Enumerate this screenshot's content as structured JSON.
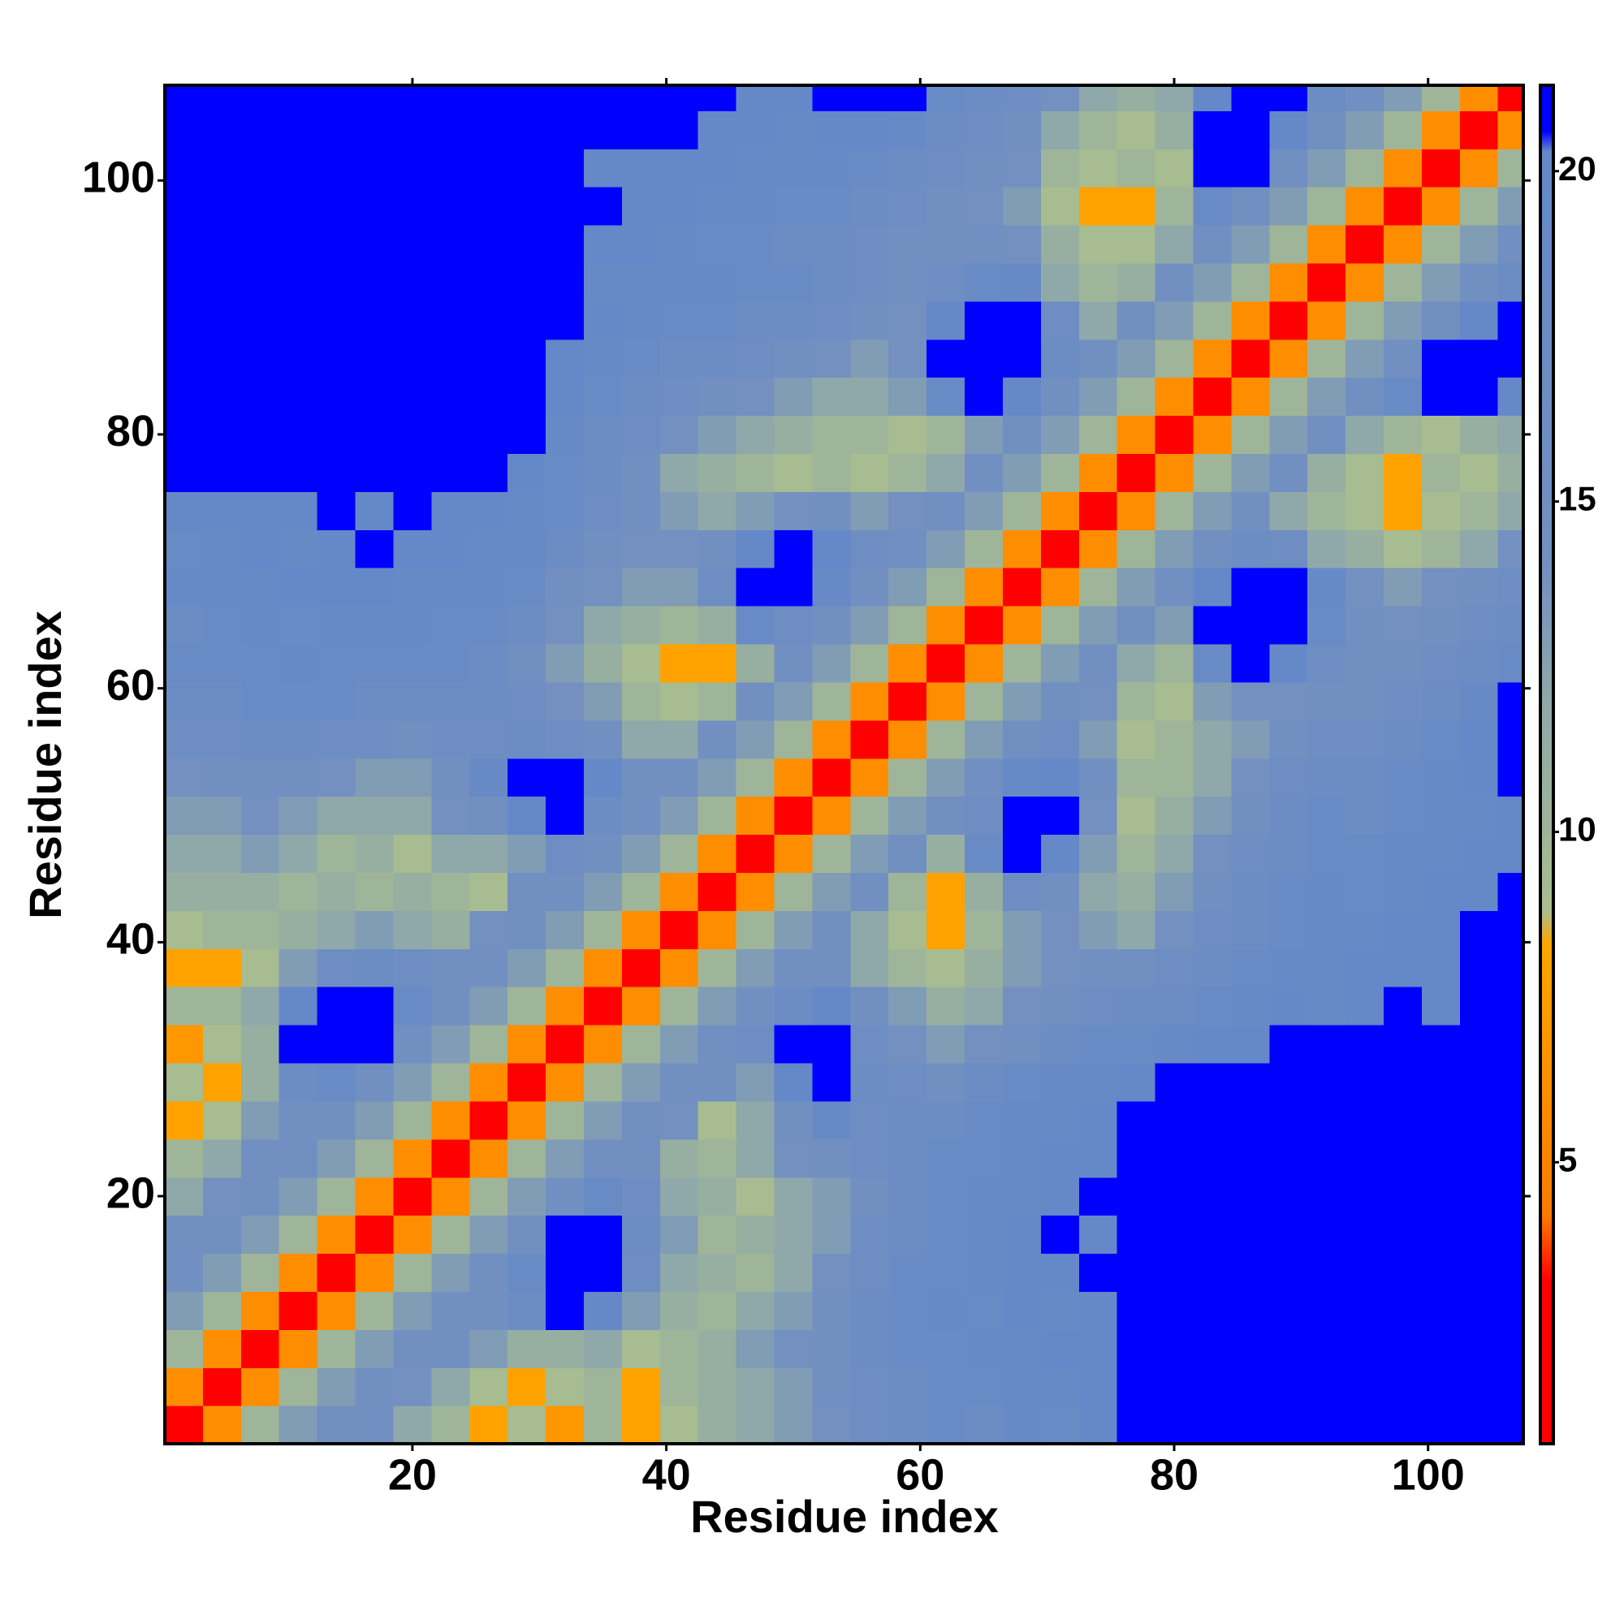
{
  "chart_data": {
    "type": "heatmap",
    "x_label": "Residue index",
    "y_label": "Residue index",
    "bins": [
      0.5,
      3.5,
      6.5,
      9.5,
      12.5,
      15.5,
      18.5,
      21.5,
      24.5,
      27.5,
      30.5,
      33.5,
      36.5,
      39.5,
      42.5,
      45.5,
      48.5,
      51.5,
      54.5,
      57.5,
      60.5,
      63.5,
      66.5,
      69.5,
      72.5,
      75.5,
      78.5,
      81.5,
      84.5,
      87.5,
      90.5,
      93.5,
      96.5,
      99.5,
      102.5,
      105.5,
      107.5
    ],
    "values": [
      [
        2,
        6,
        10,
        13,
        15,
        15,
        12,
        10,
        8,
        9,
        7,
        10,
        8,
        9,
        11,
        12,
        13,
        14,
        16,
        17,
        18,
        17,
        19,
        18,
        20,
        21,
        21,
        21,
        21,
        21,
        21,
        21,
        21,
        21,
        21,
        21
      ],
      [
        6,
        2,
        6,
        10,
        13,
        15,
        14,
        12,
        9,
        8,
        9,
        10,
        8,
        10,
        11,
        12,
        13,
        15,
        16,
        17,
        18,
        18,
        19,
        19,
        20,
        21,
        21,
        21,
        21,
        21,
        21,
        21,
        21,
        21,
        21,
        21
      ],
      [
        10,
        6,
        2,
        6,
        10,
        13,
        15,
        15,
        13,
        11,
        11,
        12,
        9,
        10,
        11,
        13,
        14,
        15,
        17,
        18,
        18,
        19,
        19,
        20,
        20,
        21,
        21,
        21,
        21,
        21,
        21,
        21,
        21,
        21,
        21,
        21
      ],
      [
        13,
        10,
        6,
        2,
        6,
        10,
        13,
        15,
        15,
        17,
        21,
        20,
        13,
        11,
        10,
        12,
        13,
        15,
        17,
        18,
        19,
        18,
        20,
        19,
        20,
        21,
        21,
        21,
        21,
        21,
        21,
        21,
        21,
        21,
        21,
        21
      ],
      [
        15,
        13,
        10,
        6,
        2,
        6,
        10,
        13,
        15,
        18,
        21,
        21,
        16,
        12,
        11,
        10,
        12,
        14,
        16,
        18,
        18,
        19,
        20,
        20,
        21,
        21,
        21,
        21,
        21,
        21,
        21,
        21,
        21,
        21,
        21,
        21
      ],
      [
        15,
        15,
        13,
        10,
        6,
        2,
        6,
        10,
        13,
        15,
        21,
        21,
        17,
        13,
        10,
        11,
        12,
        13,
        16,
        17,
        18,
        19,
        20,
        21,
        20,
        21,
        21,
        21,
        21,
        21,
        21,
        21,
        21,
        21,
        21,
        21
      ],
      [
        12,
        14,
        15,
        13,
        10,
        6,
        2,
        6,
        10,
        13,
        15,
        18,
        16,
        12,
        11,
        9,
        12,
        13,
        15,
        17,
        18,
        19,
        19,
        20,
        21,
        21,
        21,
        21,
        21,
        21,
        21,
        21,
        21,
        21,
        21,
        21
      ],
      [
        10,
        12,
        15,
        15,
        13,
        10,
        6,
        2,
        6,
        10,
        13,
        15,
        15,
        11,
        10,
        12,
        14,
        15,
        16,
        17,
        18,
        18,
        19,
        20,
        20,
        21,
        21,
        21,
        21,
        21,
        21,
        21,
        21,
        21,
        21,
        21
      ],
      [
        8,
        9,
        13,
        15,
        15,
        13,
        10,
        6,
        2,
        6,
        10,
        13,
        15,
        14,
        9,
        12,
        15,
        19,
        16,
        17,
        17,
        18,
        19,
        19,
        20,
        21,
        21,
        21,
        21,
        21,
        21,
        21,
        21,
        21,
        21,
        21
      ],
      [
        9,
        8,
        11,
        17,
        18,
        15,
        13,
        10,
        6,
        2,
        6,
        10,
        13,
        15,
        15,
        13,
        20,
        21,
        17,
        16,
        15,
        17,
        18,
        19,
        19,
        20,
        21,
        21,
        21,
        21,
        21,
        21,
        21,
        21,
        21,
        21
      ],
      [
        7,
        9,
        11,
        21,
        21,
        21,
        15,
        13,
        10,
        6,
        2,
        6,
        10,
        13,
        15,
        16,
        21,
        21,
        16,
        14,
        13,
        14,
        15,
        17,
        18,
        18,
        19,
        20,
        20,
        21,
        21,
        21,
        21,
        21,
        21,
        21
      ],
      [
        10,
        10,
        12,
        20,
        21,
        21,
        18,
        15,
        13,
        10,
        6,
        2,
        6,
        10,
        13,
        15,
        17,
        20,
        15,
        13,
        11,
        12,
        14,
        15,
        16,
        17,
        17,
        18,
        19,
        20,
        19,
        20,
        21,
        20,
        21,
        21
      ],
      [
        8,
        8,
        9,
        13,
        16,
        17,
        16,
        15,
        15,
        13,
        10,
        6,
        2,
        6,
        10,
        13,
        15,
        15,
        12,
        10,
        9,
        11,
        13,
        14,
        15,
        15,
        16,
        17,
        18,
        19,
        19,
        20,
        20,
        20,
        21,
        21
      ],
      [
        9,
        10,
        10,
        11,
        12,
        13,
        12,
        11,
        14,
        15,
        13,
        10,
        6,
        2,
        6,
        10,
        13,
        15,
        12,
        9,
        8,
        10,
        13,
        14,
        13,
        12,
        14,
        16,
        17,
        18,
        19,
        19,
        20,
        20,
        21,
        21
      ],
      [
        11,
        11,
        11,
        10,
        11,
        10,
        11,
        10,
        9,
        15,
        15,
        13,
        10,
        6,
        2,
        6,
        10,
        13,
        15,
        10,
        8,
        11,
        16,
        15,
        12,
        11,
        13,
        15,
        17,
        18,
        19,
        18,
        19,
        20,
        20,
        21
      ],
      [
        12,
        12,
        13,
        12,
        10,
        11,
        9,
        12,
        12,
        13,
        16,
        15,
        13,
        10,
        6,
        2,
        6,
        10,
        13,
        15,
        11,
        18,
        21,
        20,
        13,
        10,
        12,
        14,
        16,
        17,
        18,
        18,
        19,
        19,
        20,
        20
      ],
      [
        13,
        13,
        14,
        13,
        12,
        12,
        12,
        14,
        15,
        20,
        21,
        17,
        15,
        13,
        10,
        6,
        2,
        6,
        10,
        13,
        15,
        16,
        21,
        21,
        14,
        9,
        11,
        13,
        15,
        17,
        18,
        17,
        18,
        19,
        19,
        20
      ],
      [
        14,
        15,
        15,
        15,
        14,
        13,
        13,
        15,
        19,
        21,
        21,
        20,
        15,
        15,
        13,
        10,
        6,
        2,
        6,
        10,
        13,
        15,
        19,
        20,
        15,
        10,
        10,
        12,
        14,
        16,
        17,
        17,
        18,
        19,
        20,
        21
      ],
      [
        16,
        16,
        17,
        17,
        16,
        16,
        15,
        16,
        16,
        17,
        16,
        15,
        12,
        12,
        15,
        13,
        10,
        6,
        2,
        6,
        10,
        13,
        15,
        16,
        13,
        9,
        10,
        12,
        13,
        15,
        16,
        16,
        17,
        18,
        20,
        21
      ],
      [
        17,
        17,
        18,
        18,
        18,
        17,
        17,
        17,
        17,
        16,
        14,
        13,
        10,
        9,
        10,
        15,
        13,
        10,
        6,
        2,
        6,
        10,
        13,
        15,
        14,
        10,
        9,
        13,
        14,
        14,
        15,
        15,
        16,
        17,
        19,
        21
      ],
      [
        18,
        18,
        18,
        19,
        18,
        18,
        18,
        18,
        17,
        15,
        13,
        11,
        9,
        8,
        8,
        11,
        15,
        13,
        10,
        6,
        2,
        6,
        10,
        13,
        15,
        12,
        10,
        18,
        21,
        20,
        16,
        15,
        15,
        16,
        17,
        18
      ],
      [
        17,
        18,
        19,
        18,
        19,
        19,
        19,
        18,
        18,
        17,
        14,
        12,
        11,
        10,
        11,
        18,
        16,
        15,
        13,
        10,
        6,
        2,
        6,
        10,
        13,
        15,
        13,
        21,
        21,
        21,
        18,
        15,
        14,
        15,
        16,
        17
      ],
      [
        19,
        19,
        19,
        20,
        20,
        20,
        19,
        19,
        19,
        18,
        15,
        14,
        13,
        13,
        16,
        21,
        21,
        19,
        15,
        13,
        10,
        6,
        2,
        6,
        10,
        13,
        15,
        20,
        21,
        21,
        19,
        14,
        13,
        14,
        15,
        16
      ],
      [
        18,
        19,
        20,
        19,
        20,
        21,
        20,
        20,
        19,
        19,
        17,
        15,
        14,
        14,
        15,
        20,
        21,
        20,
        16,
        15,
        13,
        10,
        6,
        2,
        6,
        10,
        13,
        15,
        17,
        16,
        12,
        11,
        9,
        10,
        12,
        14
      ],
      [
        20,
        20,
        20,
        20,
        21,
        20,
        21,
        20,
        20,
        19,
        18,
        16,
        15,
        13,
        12,
        13,
        14,
        15,
        13,
        14,
        15,
        13,
        10,
        6,
        2,
        6,
        10,
        13,
        15,
        12,
        10,
        9,
        8,
        9,
        10,
        12
      ],
      [
        21,
        21,
        21,
        21,
        21,
        21,
        21,
        21,
        21,
        20,
        18,
        17,
        15,
        12,
        11,
        10,
        9,
        10,
        9,
        10,
        12,
        15,
        13,
        10,
        6,
        2,
        6,
        10,
        13,
        15,
        11,
        9,
        8,
        10,
        9,
        11
      ],
      [
        21,
        21,
        21,
        21,
        21,
        21,
        21,
        21,
        21,
        21,
        19,
        17,
        16,
        14,
        13,
        12,
        11,
        10,
        10,
        9,
        10,
        13,
        15,
        13,
        10,
        6,
        2,
        6,
        10,
        13,
        15,
        12,
        10,
        9,
        11,
        12
      ],
      [
        21,
        21,
        21,
        21,
        21,
        21,
        21,
        21,
        21,
        21,
        20,
        18,
        17,
        16,
        15,
        14,
        13,
        12,
        12,
        13,
        18,
        21,
        20,
        15,
        13,
        10,
        6,
        2,
        6,
        10,
        13,
        15,
        18,
        21,
        21,
        20
      ],
      [
        21,
        21,
        21,
        21,
        21,
        21,
        21,
        21,
        21,
        21,
        20,
        19,
        18,
        17,
        17,
        16,
        15,
        14,
        13,
        14,
        21,
        21,
        21,
        17,
        15,
        13,
        10,
        6,
        2,
        6,
        10,
        13,
        15,
        21,
        21,
        21
      ],
      [
        21,
        21,
        21,
        21,
        21,
        21,
        21,
        21,
        21,
        21,
        21,
        20,
        19,
        18,
        18,
        17,
        17,
        16,
        15,
        14,
        20,
        21,
        21,
        16,
        12,
        15,
        13,
        10,
        6,
        2,
        6,
        10,
        13,
        15,
        20,
        21
      ],
      [
        21,
        21,
        21,
        21,
        21,
        21,
        21,
        21,
        21,
        21,
        21,
        19,
        19,
        19,
        19,
        18,
        18,
        17,
        16,
        15,
        16,
        18,
        19,
        12,
        10,
        11,
        15,
        13,
        10,
        6,
        2,
        6,
        10,
        13,
        15,
        17
      ],
      [
        21,
        21,
        21,
        21,
        21,
        21,
        21,
        21,
        21,
        21,
        21,
        20,
        20,
        19,
        18,
        18,
        17,
        17,
        16,
        15,
        15,
        15,
        14,
        11,
        9,
        9,
        12,
        15,
        13,
        10,
        6,
        2,
        6,
        10,
        13,
        15
      ],
      [
        21,
        21,
        21,
        21,
        21,
        21,
        21,
        21,
        21,
        21,
        21,
        21,
        20,
        20,
        19,
        19,
        18,
        18,
        17,
        16,
        15,
        14,
        13,
        9,
        8,
        8,
        10,
        18,
        15,
        13,
        10,
        6,
        2,
        6,
        10,
        13
      ],
      [
        21,
        21,
        21,
        21,
        21,
        21,
        21,
        21,
        21,
        21,
        21,
        20,
        20,
        20,
        20,
        19,
        19,
        19,
        18,
        17,
        16,
        15,
        14,
        10,
        9,
        10,
        9,
        21,
        21,
        15,
        13,
        10,
        6,
        2,
        6,
        10
      ],
      [
        21,
        21,
        21,
        21,
        21,
        21,
        21,
        21,
        21,
        21,
        21,
        21,
        21,
        21,
        20,
        20,
        19,
        20,
        20,
        19,
        17,
        16,
        15,
        12,
        10,
        9,
        11,
        21,
        21,
        20,
        15,
        13,
        10,
        6,
        2,
        6
      ],
      [
        21,
        21,
        21,
        21,
        21,
        21,
        21,
        21,
        21,
        21,
        21,
        21,
        21,
        21,
        21,
        20,
        20,
        21,
        21,
        21,
        18,
        17,
        16,
        14,
        12,
        11,
        12,
        20,
        21,
        21,
        17,
        15,
        13,
        10,
        6,
        2
      ]
    ],
    "xlim": [
      0.5,
      107.5
    ],
    "ylim": [
      0.5,
      107.5
    ],
    "xticks": [
      20,
      40,
      60,
      80,
      100
    ],
    "yticks": [
      20,
      40,
      60,
      80,
      100
    ],
    "clim": [
      0.74,
      21.3
    ],
    "cticks": [
      5,
      10,
      15,
      20
    ],
    "colorscale": [
      [
        0.74,
        "#ff0000"
      ],
      [
        3.2,
        "#ff0000"
      ],
      [
        4.2,
        "#ff7a00"
      ],
      [
        8.3,
        "#ffa500"
      ],
      [
        8.8,
        "#a9bd8e"
      ],
      [
        12,
        "#8fa8aa"
      ],
      [
        14,
        "#7390c0"
      ],
      [
        20.3,
        "#6488c8"
      ],
      [
        20.6,
        "#0000ff"
      ],
      [
        21.3,
        "#0000ff"
      ]
    ]
  }
}
